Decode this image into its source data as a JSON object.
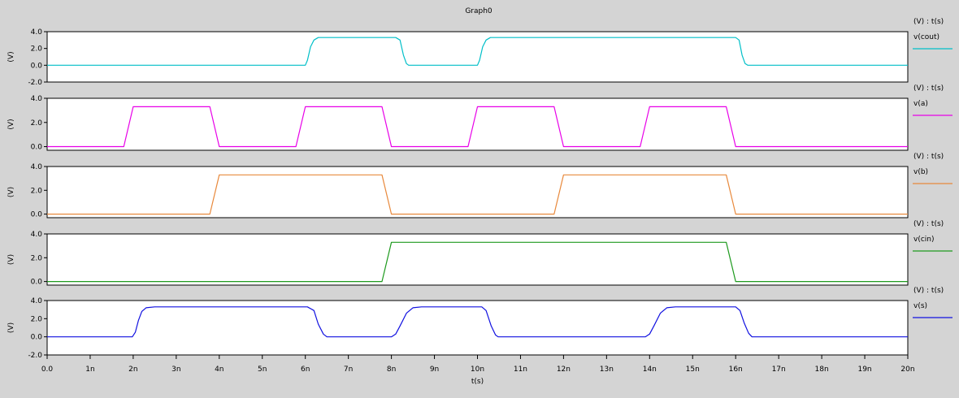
{
  "window": {
    "title": "Graph0"
  },
  "chart_data": {
    "type": "line",
    "title": "Graph0",
    "xlabel": "t(s)",
    "x_ticks": [
      "0.0",
      "1n",
      "2n",
      "3n",
      "4n",
      "5n",
      "6n",
      "7n",
      "8n",
      "9n",
      "10n",
      "11n",
      "12n",
      "13n",
      "14n",
      "15n",
      "16n",
      "17n",
      "18n",
      "19n",
      "20n"
    ],
    "xlim": [
      0,
      20
    ],
    "x_unit": "ns",
    "panels": [
      {
        "name": "v(cout)",
        "axis_title": "(V) : t(s)",
        "ylabel": "(V)",
        "ylim": [
          -2,
          4
        ],
        "y_ticks": [
          "4.0",
          "2.0",
          "0.0",
          "-2.0"
        ],
        "y_tick_values": [
          4,
          2,
          0,
          -2
        ],
        "color": "#00bfc8",
        "smooth": true,
        "x": [
          0,
          6.0,
          6.05,
          6.12,
          6.2,
          6.3,
          8.1,
          8.2,
          8.28,
          8.35,
          8.4,
          10.0,
          10.05,
          10.12,
          10.2,
          10.3,
          16.0,
          16.08,
          16.15,
          16.22,
          16.28,
          20
        ],
        "values": [
          0,
          0,
          0.6,
          2.2,
          3.0,
          3.3,
          3.3,
          3.0,
          1.2,
          0.2,
          0,
          0,
          0.6,
          2.2,
          3.0,
          3.3,
          3.3,
          3.0,
          1.2,
          0.2,
          0,
          0
        ]
      },
      {
        "name": "v(a)",
        "axis_title": "(V) : t(s)",
        "ylabel": "(V)",
        "ylim": [
          -0.3,
          4
        ],
        "y_ticks": [
          "4.0",
          "2.0",
          "0.0"
        ],
        "y_tick_values": [
          4,
          2,
          0
        ],
        "color": "#e800e8",
        "smooth": false,
        "x": [
          0,
          1.78,
          2.0,
          3.78,
          4.0,
          5.78,
          6.0,
          7.78,
          8.0,
          9.78,
          10.0,
          11.78,
          12.0,
          13.78,
          14.0,
          15.78,
          16.0,
          20
        ],
        "values": [
          0,
          0,
          3.3,
          3.3,
          0,
          0,
          3.3,
          3.3,
          0,
          0,
          3.3,
          3.3,
          0,
          0,
          3.3,
          3.3,
          0,
          0
        ]
      },
      {
        "name": "v(b)",
        "axis_title": "(V) : t(s)",
        "ylabel": "(V)",
        "ylim": [
          -0.3,
          4
        ],
        "y_ticks": [
          "4.0",
          "2.0",
          "0.0"
        ],
        "y_tick_values": [
          4,
          2,
          0
        ],
        "color": "#e8893c",
        "smooth": false,
        "x": [
          0,
          3.78,
          4.0,
          7.78,
          8.0,
          11.78,
          12.0,
          15.78,
          16.0,
          20
        ],
        "values": [
          0,
          0,
          3.3,
          3.3,
          0,
          0,
          3.3,
          3.3,
          0,
          0
        ]
      },
      {
        "name": "v(cin)",
        "axis_title": "(V) : t(s)",
        "ylabel": "(V)",
        "ylim": [
          -0.3,
          4
        ],
        "y_ticks": [
          "4.0",
          "2.0",
          "0.0"
        ],
        "y_tick_values": [
          4,
          2,
          0
        ],
        "color": "#1e9a1e",
        "smooth": false,
        "x": [
          0,
          7.78,
          8.0,
          15.78,
          16.0,
          20
        ],
        "values": [
          0,
          0,
          3.3,
          3.3,
          0,
          0
        ]
      },
      {
        "name": "v(s)",
        "axis_title": "(V) : t(s)",
        "ylabel": "(V)",
        "ylim": [
          -2,
          4
        ],
        "y_ticks": [
          "4.0",
          "2.0",
          "0.0",
          "-2.0"
        ],
        "y_tick_values": [
          4,
          2,
          0,
          -2
        ],
        "color": "#1010e0",
        "smooth": true,
        "x": [
          0,
          1.98,
          2.05,
          2.12,
          2.2,
          2.3,
          2.5,
          6.05,
          6.2,
          6.3,
          6.42,
          6.5,
          8.0,
          8.1,
          8.2,
          8.35,
          8.5,
          8.7,
          10.1,
          10.2,
          10.32,
          10.42,
          10.48,
          13.9,
          14.0,
          14.1,
          14.25,
          14.4,
          14.6,
          16.0,
          16.1,
          16.2,
          16.3,
          16.38,
          20
        ],
        "values": [
          0,
          0,
          0.5,
          1.8,
          2.8,
          3.2,
          3.3,
          3.3,
          2.9,
          1.4,
          0.3,
          0,
          0,
          0.3,
          1.2,
          2.6,
          3.2,
          3.3,
          3.3,
          2.9,
          1.2,
          0.2,
          0,
          0,
          0.3,
          1.2,
          2.6,
          3.2,
          3.3,
          3.3,
          2.9,
          1.5,
          0.4,
          0,
          0
        ]
      }
    ]
  }
}
